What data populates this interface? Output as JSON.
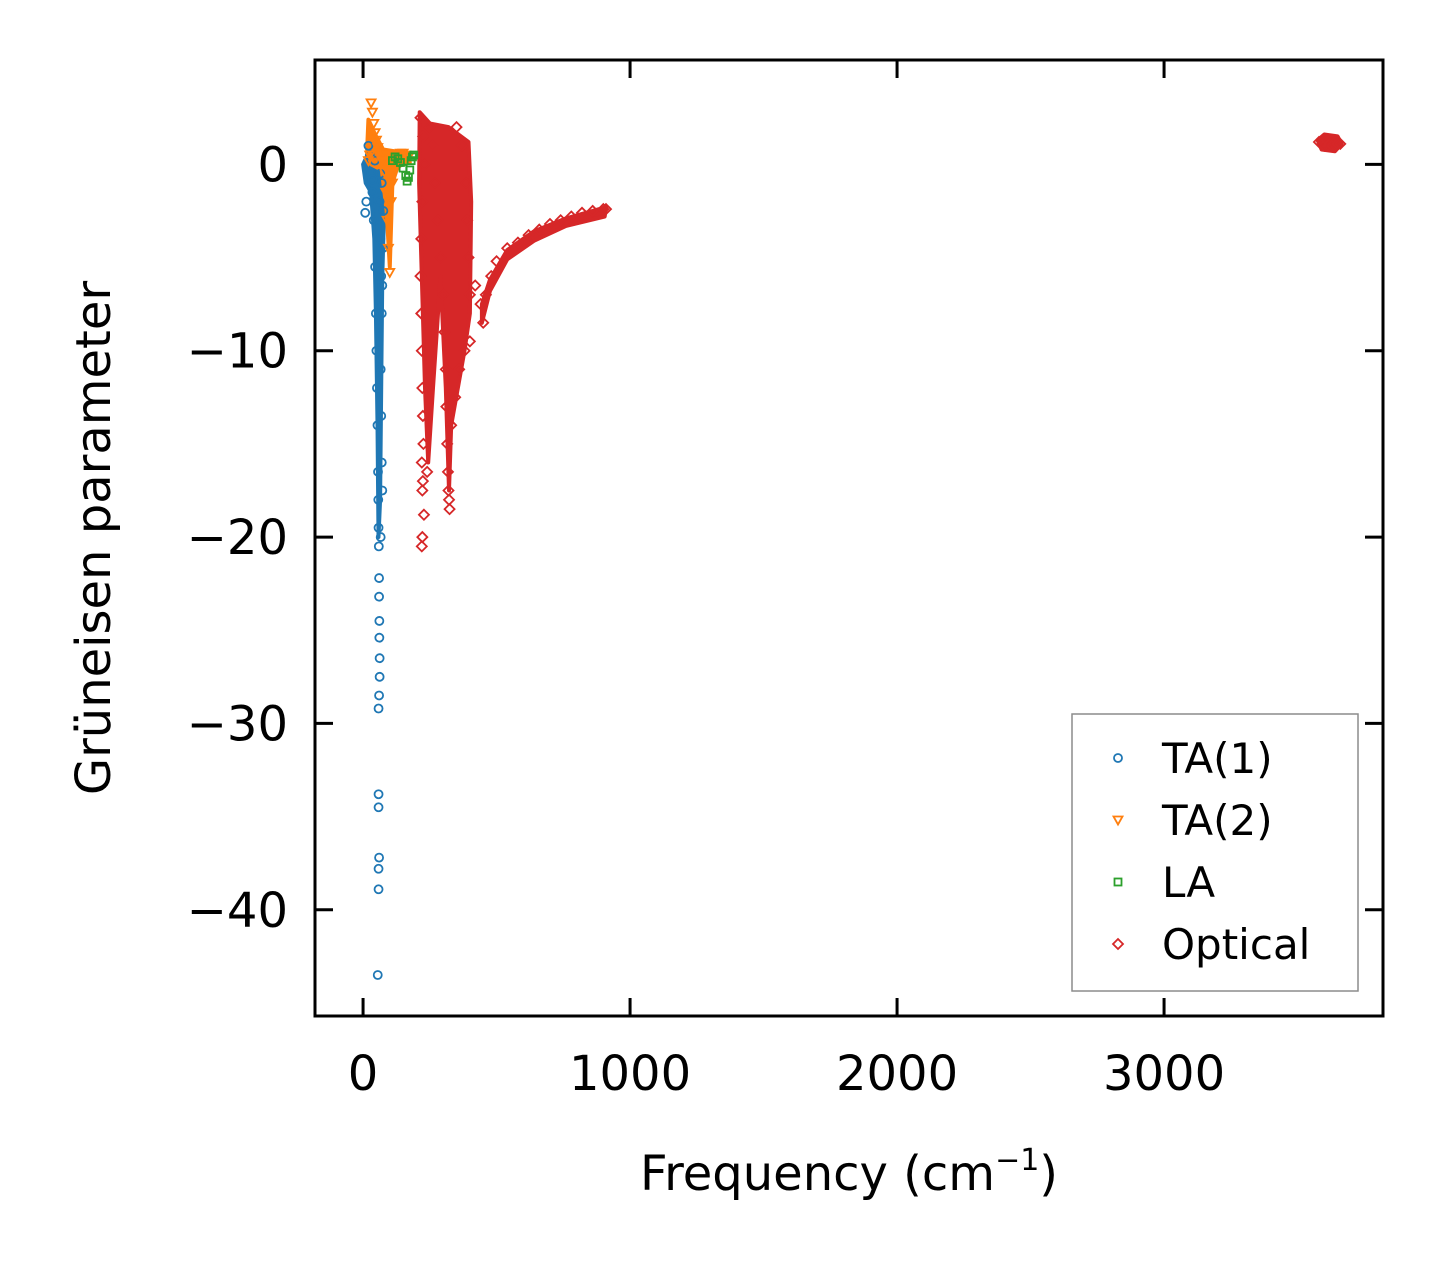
{
  "chart_data": {
    "type": "scatter",
    "title": "",
    "xlabel": "Frequency (cm",
    "xlabel_sup": "−1",
    "xlabel_end": ")",
    "ylabel": "Grüneisen parameter",
    "xlim": [
      -180,
      3820
    ],
    "ylim": [
      -45.7,
      5.6
    ],
    "xticks": [
      0,
      1000,
      2000,
      3000
    ],
    "xtick_labels": [
      "0",
      "1000",
      "2000",
      "3000"
    ],
    "yticks": [
      0,
      -10,
      -20,
      -30,
      -40
    ],
    "ytick_labels": [
      "0",
      "−10",
      "−20",
      "−30",
      "−40"
    ],
    "grid": false,
    "legend_position": "lower-right",
    "series": [
      {
        "name": "TA(1)",
        "color": "#1f77b4",
        "marker": "circle",
        "points": [
          [
            8,
            -2.6
          ],
          [
            12,
            -2.0
          ],
          [
            20,
            1.0
          ],
          [
            25,
            0.5
          ],
          [
            30,
            -0.5
          ],
          [
            35,
            -1.5
          ],
          [
            40,
            -3.0
          ],
          [
            45,
            -5.5
          ],
          [
            48,
            -8.0
          ],
          [
            50,
            -10.0
          ],
          [
            52,
            -12.0
          ],
          [
            54,
            -14.0
          ],
          [
            56,
            -16.5
          ],
          [
            57,
            -18.0
          ],
          [
            58,
            -19.5
          ],
          [
            59,
            -20.5
          ],
          [
            60,
            -22.2
          ],
          [
            60,
            -23.2
          ],
          [
            61,
            -24.5
          ],
          [
            61,
            -25.4
          ],
          [
            62,
            -26.5
          ],
          [
            62,
            -27.5
          ],
          [
            60,
            -28.5
          ],
          [
            58,
            -29.2
          ],
          [
            58,
            -33.8
          ],
          [
            58,
            -34.5
          ],
          [
            60,
            -37.2
          ],
          [
            58,
            -37.8
          ],
          [
            58,
            -38.9
          ],
          [
            55,
            -43.5
          ],
          [
            62,
            -2.0
          ],
          [
            65,
            -4.0
          ],
          [
            68,
            -6.0
          ],
          [
            70,
            -8.0
          ],
          [
            72,
            -6.5
          ],
          [
            74,
            -4.5
          ],
          [
            76,
            -2.5
          ],
          [
            66,
            -11.0
          ],
          [
            68,
            -13.5
          ],
          [
            70,
            -16.0
          ],
          [
            72,
            -17.5
          ],
          [
            66,
            -20.0
          ],
          [
            64,
            -0.5
          ],
          [
            44,
            0.2
          ],
          [
            36,
            -0.8
          ],
          [
            70,
            -1.0
          ]
        ]
      },
      {
        "name": "TA(2)",
        "color": "#ff7f0e",
        "marker": "triangle-down",
        "points": [
          [
            30,
            3.3
          ],
          [
            35,
            2.8
          ],
          [
            40,
            2.2
          ],
          [
            45,
            1.7
          ],
          [
            50,
            1.3
          ],
          [
            55,
            0.9
          ],
          [
            60,
            0.6
          ],
          [
            20,
            0.2
          ],
          [
            25,
            0.5
          ],
          [
            70,
            0.2
          ],
          [
            80,
            -0.4
          ],
          [
            85,
            -1.5
          ],
          [
            90,
            -3.0
          ],
          [
            95,
            -4.5
          ],
          [
            100,
            -5.8
          ],
          [
            105,
            -2.0
          ],
          [
            110,
            -1.0
          ],
          [
            120,
            -0.2
          ],
          [
            130,
            0.4
          ],
          [
            140,
            0.6
          ],
          [
            150,
            0.6
          ],
          [
            160,
            0.5
          ],
          [
            170,
            0.4
          ],
          [
            90,
            0.5
          ],
          [
            100,
            0.3
          ],
          [
            115,
            0.5
          ],
          [
            125,
            0.2
          ],
          [
            135,
            0.0
          ]
        ]
      },
      {
        "name": "LA",
        "color": "#2ca02c",
        "marker": "square",
        "points": [
          [
            110,
            0.2
          ],
          [
            120,
            0.4
          ],
          [
            130,
            0.3
          ],
          [
            140,
            0.1
          ],
          [
            150,
            -0.2
          ],
          [
            160,
            -0.6
          ],
          [
            165,
            -0.9
          ],
          [
            170,
            -0.7
          ],
          [
            175,
            -0.3
          ],
          [
            180,
            0.2
          ],
          [
            185,
            0.4
          ],
          [
            190,
            0.5
          ]
        ]
      },
      {
        "name": "Optical",
        "color": "#d62728",
        "marker": "diamond",
        "points": [
          [
            215,
            2.5
          ],
          [
            225,
            1.5
          ],
          [
            230,
            0.0
          ],
          [
            222,
            -2.0
          ],
          [
            218,
            -4.0
          ],
          [
            215,
            -6.0
          ],
          [
            218,
            -8.0
          ],
          [
            220,
            -10.0
          ],
          [
            222,
            -12.0
          ],
          [
            224,
            -13.5
          ],
          [
            226,
            -15.0
          ],
          [
            220,
            -16.0
          ],
          [
            224,
            -17.0
          ],
          [
            222,
            -17.5
          ],
          [
            228,
            -18.8
          ],
          [
            222,
            -20.0
          ],
          [
            220,
            -20.5
          ],
          [
            240,
            -16.5
          ],
          [
            250,
            2.0
          ],
          [
            260,
            1.0
          ],
          [
            270,
            -1.0
          ],
          [
            280,
            -3.0
          ],
          [
            290,
            -5.0
          ],
          [
            300,
            -7.0
          ],
          [
            305,
            -9.0
          ],
          [
            310,
            -11.0
          ],
          [
            312,
            -13.0
          ],
          [
            315,
            -15.0
          ],
          [
            318,
            -16.5
          ],
          [
            320,
            -17.5
          ],
          [
            322,
            -18.0
          ],
          [
            324,
            -18.5
          ],
          [
            330,
            -14.0
          ],
          [
            345,
            -12.5
          ],
          [
            360,
            -11.0
          ],
          [
            380,
            -10.0
          ],
          [
            400,
            -9.5
          ],
          [
            350,
            2.0
          ],
          [
            370,
            1.0
          ],
          [
            385,
            -1.0
          ],
          [
            390,
            -3.0
          ],
          [
            395,
            -5.0
          ],
          [
            400,
            -7.0
          ],
          [
            420,
            -6.5
          ],
          [
            440,
            -7.5
          ],
          [
            450,
            -8.5
          ],
          [
            460,
            -7.0
          ],
          [
            480,
            -6.0
          ],
          [
            500,
            -5.2
          ],
          [
            540,
            -4.5
          ],
          [
            580,
            -4.2
          ],
          [
            620,
            -3.8
          ],
          [
            660,
            -3.5
          ],
          [
            700,
            -3.2
          ],
          [
            740,
            -3.0
          ],
          [
            780,
            -2.8
          ],
          [
            820,
            -2.6
          ],
          [
            860,
            -2.5
          ],
          [
            900,
            -2.4
          ],
          [
            910,
            -2.4
          ],
          [
            3580,
            1.2
          ],
          [
            3600,
            1.0
          ],
          [
            3610,
            1.3
          ],
          [
            3620,
            1.1
          ],
          [
            3630,
            1.0
          ],
          [
            3640,
            1.2
          ],
          [
            3650,
            1.1
          ],
          [
            3660,
            1.1
          ]
        ]
      }
    ],
    "dense_regions": [
      {
        "series": "TA(1)",
        "polygon": [
          [
            0,
            0
          ],
          [
            40,
            1.2
          ],
          [
            70,
            0.5
          ],
          [
            80,
            -2.0
          ],
          [
            72,
            -6.0
          ],
          [
            68,
            -12.0
          ],
          [
            64,
            -18.0
          ],
          [
            58,
            -20.0
          ],
          [
            54,
            -14.0
          ],
          [
            48,
            -8.0
          ],
          [
            42,
            -4.0
          ],
          [
            30,
            -1.5
          ],
          [
            10,
            -1.0
          ]
        ]
      },
      {
        "series": "TA(2)",
        "polygon": [
          [
            20,
            2.4
          ],
          [
            45,
            1.6
          ],
          [
            75,
            0.8
          ],
          [
            120,
            0.7
          ],
          [
            170,
            0.6
          ],
          [
            175,
            0.1
          ],
          [
            130,
            -0.1
          ],
          [
            110,
            -1.0
          ],
          [
            100,
            -5.5
          ],
          [
            88,
            -2.5
          ],
          [
            70,
            -0.3
          ],
          [
            30,
            0.0
          ],
          [
            15,
            0.8
          ]
        ]
      },
      {
        "series": "Optical",
        "polygon": [
          [
            212,
            2.8
          ],
          [
            250,
            2.2
          ],
          [
            320,
            2.0
          ],
          [
            395,
            1.2
          ],
          [
            405,
            -2.0
          ],
          [
            400,
            -8.0
          ],
          [
            380,
            -10.0
          ],
          [
            330,
            -14.0
          ],
          [
            322,
            -17.5
          ],
          [
            310,
            -12.0
          ],
          [
            290,
            -6.0
          ],
          [
            262,
            -12.0
          ],
          [
            244,
            -16.0
          ],
          [
            232,
            -12.0
          ],
          [
            220,
            -6.0
          ],
          [
            210,
            -1.0
          ]
        ]
      },
      {
        "series": "Optical",
        "polygon": [
          [
            445,
            -7.5
          ],
          [
            475,
            -6.2
          ],
          [
            540,
            -4.6
          ],
          [
            640,
            -3.6
          ],
          [
            760,
            -2.9
          ],
          [
            910,
            -2.3
          ],
          [
            905,
            -2.8
          ],
          [
            760,
            -3.3
          ],
          [
            640,
            -4.1
          ],
          [
            540,
            -5.1
          ],
          [
            475,
            -6.8
          ],
          [
            445,
            -8.5
          ]
        ]
      },
      {
        "series": "Optical",
        "polygon": [
          [
            3575,
            1.3
          ],
          [
            3600,
            1.6
          ],
          [
            3650,
            1.5
          ],
          [
            3665,
            1.1
          ],
          [
            3640,
            0.7
          ],
          [
            3590,
            0.8
          ]
        ]
      }
    ]
  }
}
